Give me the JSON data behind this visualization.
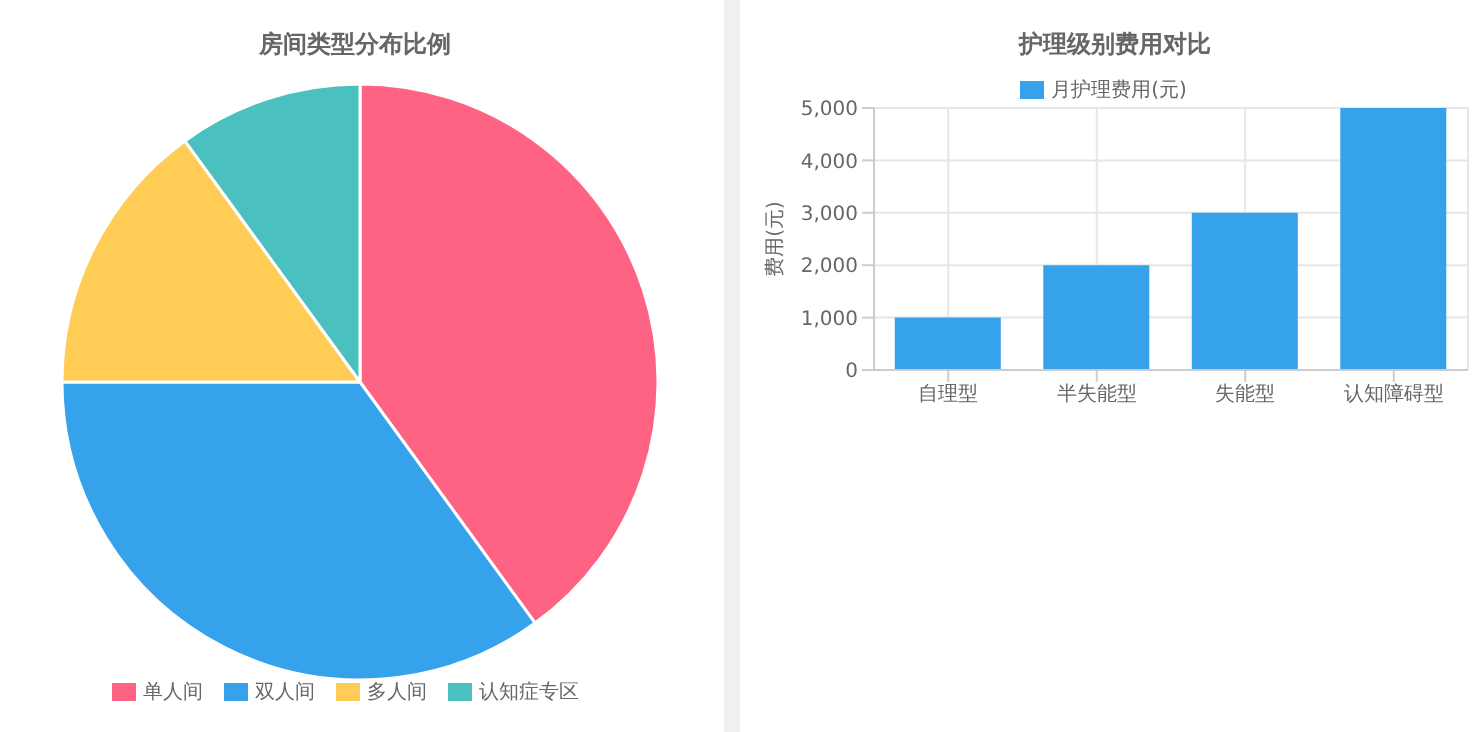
{
  "chart_data": [
    {
      "type": "pie",
      "title": "房间类型分布比例",
      "categories": [
        "单人间",
        "双人间",
        "多人间",
        "认知症专区"
      ],
      "values": [
        40,
        35,
        15,
        10
      ],
      "colors": [
        "#ff6384",
        "#36a2eb",
        "#ffcd56",
        "#4bc0c0"
      ],
      "legend": "bottom"
    },
    {
      "type": "bar",
      "title": "护理级别费用对比",
      "ylabel": "费用(元)",
      "categories": [
        "自理型",
        "半失能型",
        "失能型",
        "认知障碍型"
      ],
      "series": [
        {
          "name": "月护理费用(元)",
          "color": "#36a2eb",
          "values": [
            1000,
            2000,
            3000,
            5000
          ]
        }
      ],
      "ylim": [
        0,
        5000
      ],
      "yticks": [
        {
          "value": 0,
          "label": "0"
        },
        {
          "value": 1000,
          "label": "1,000"
        },
        {
          "value": 2000,
          "label": "2,000"
        },
        {
          "value": 3000,
          "label": "3,000"
        },
        {
          "value": 4000,
          "label": "4,000"
        },
        {
          "value": 5000,
          "label": "5,000"
        }
      ],
      "grid": true,
      "legend": "top"
    }
  ]
}
